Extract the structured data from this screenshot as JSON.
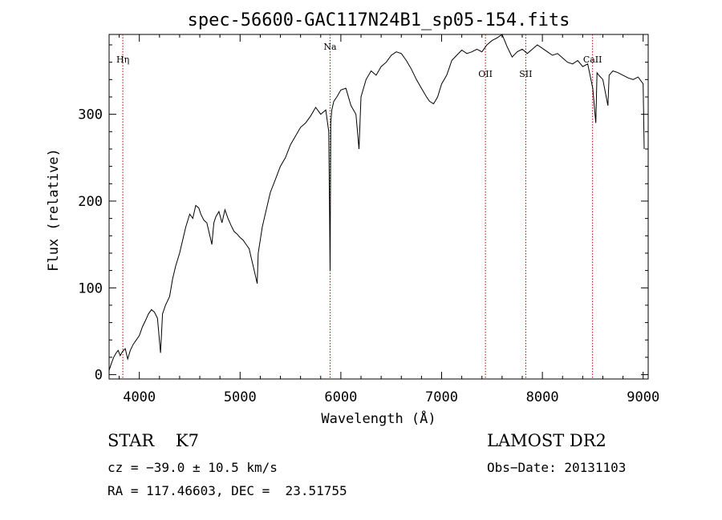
{
  "chart_data": {
    "type": "line",
    "title": "spec-56600-GAC117N24B1_sp05-154.fits",
    "xlabel": "Wavelength (Å)",
    "ylabel": "Flux (relative)",
    "xlim": [
      3700,
      9050
    ],
    "ylim": [
      -5,
      392
    ],
    "x_ticks": [
      4000,
      5000,
      6000,
      7000,
      8000,
      9000
    ],
    "y_ticks": [
      0,
      100,
      200,
      300
    ],
    "grid": false,
    "color": "#000000",
    "line_marker_color": "#b00000",
    "series": [
      {
        "x": [
          3700,
          3720,
          3745,
          3770,
          3790,
          3810,
          3835,
          3860,
          3885,
          3910,
          3940,
          3970,
          4000,
          4030,
          4060,
          4090,
          4120,
          4150,
          4180,
          4210,
          4230,
          4260,
          4300,
          4330,
          4360,
          4400,
          4430,
          4460,
          4500,
          4530,
          4560,
          4590,
          4610,
          4640,
          4670,
          4700,
          4720,
          4740,
          4760,
          4790,
          4820,
          4850,
          4880,
          4910,
          4940,
          4970,
          5000,
          5030,
          5060,
          5090,
          5110,
          5140,
          5170,
          5180,
          5200,
          5220,
          5260,
          5300,
          5350,
          5400,
          5450,
          5500,
          5550,
          5600,
          5650,
          5700,
          5750,
          5800,
          5850,
          5880,
          5893,
          5900,
          5910,
          5930,
          5960,
          6000,
          6050,
          6100,
          6150,
          6180,
          6200,
          6250,
          6300,
          6350,
          6400,
          6450,
          6500,
          6550,
          6600,
          6650,
          6700,
          6750,
          6800,
          6850,
          6880,
          6920,
          6960,
          7000,
          7050,
          7080,
          7100,
          7150,
          7200,
          7250,
          7300,
          7350,
          7400,
          7450,
          7500,
          7550,
          7600,
          7650,
          7700,
          7750,
          7800,
          7850,
          7900,
          7950,
          8000,
          8050,
          8100,
          8150,
          8200,
          8250,
          8300,
          8350,
          8400,
          8450,
          8500,
          8530,
          8542,
          8560,
          8600,
          8650,
          8662,
          8700,
          8750,
          8800,
          8850,
          8900,
          8950,
          9000,
          9010
        ],
        "y": [
          5,
          12,
          20,
          25,
          28,
          22,
          27,
          30,
          18,
          28,
          35,
          40,
          45,
          55,
          62,
          70,
          75,
          72,
          65,
          25,
          70,
          80,
          90,
          110,
          125,
          140,
          155,
          170,
          185,
          180,
          195,
          192,
          185,
          178,
          175,
          160,
          150,
          175,
          182,
          188,
          175,
          190,
          180,
          172,
          165,
          162,
          158,
          155,
          150,
          145,
          135,
          120,
          105,
          140,
          155,
          170,
          190,
          210,
          225,
          240,
          250,
          265,
          275,
          285,
          290,
          298,
          308,
          300,
          305,
          280,
          120,
          290,
          305,
          315,
          320,
          328,
          330,
          310,
          300,
          260,
          320,
          340,
          350,
          345,
          355,
          360,
          368,
          372,
          370,
          362,
          352,
          340,
          330,
          320,
          315,
          312,
          320,
          335,
          345,
          355,
          362,
          368,
          374,
          370,
          372,
          375,
          372,
          380,
          385,
          388,
          392,
          378,
          366,
          372,
          375,
          370,
          375,
          380,
          376,
          372,
          368,
          370,
          365,
          360,
          358,
          362,
          355,
          358,
          330,
          290,
          348,
          345,
          340,
          310,
          345,
          350,
          348,
          345,
          342,
          340,
          343,
          335,
          260
        ]
      }
    ]
  },
  "lines": [
    {
      "name": "Hη",
      "x": 3836
    },
    {
      "name": "Na",
      "x": 5893
    },
    {
      "name": "OII",
      "x": 7435
    },
    {
      "name": "SII",
      "x": 7835
    },
    {
      "name": "CaII",
      "x": 8498
    }
  ],
  "info": {
    "object": "STAR    K7",
    "cz": "cz = −39.0 ± 10.5 km/s",
    "coords": "RA = 117.46603, DEC =  23.51755",
    "survey": "LAMOST DR2",
    "obs_date": "Obs−Date: 20131103"
  }
}
